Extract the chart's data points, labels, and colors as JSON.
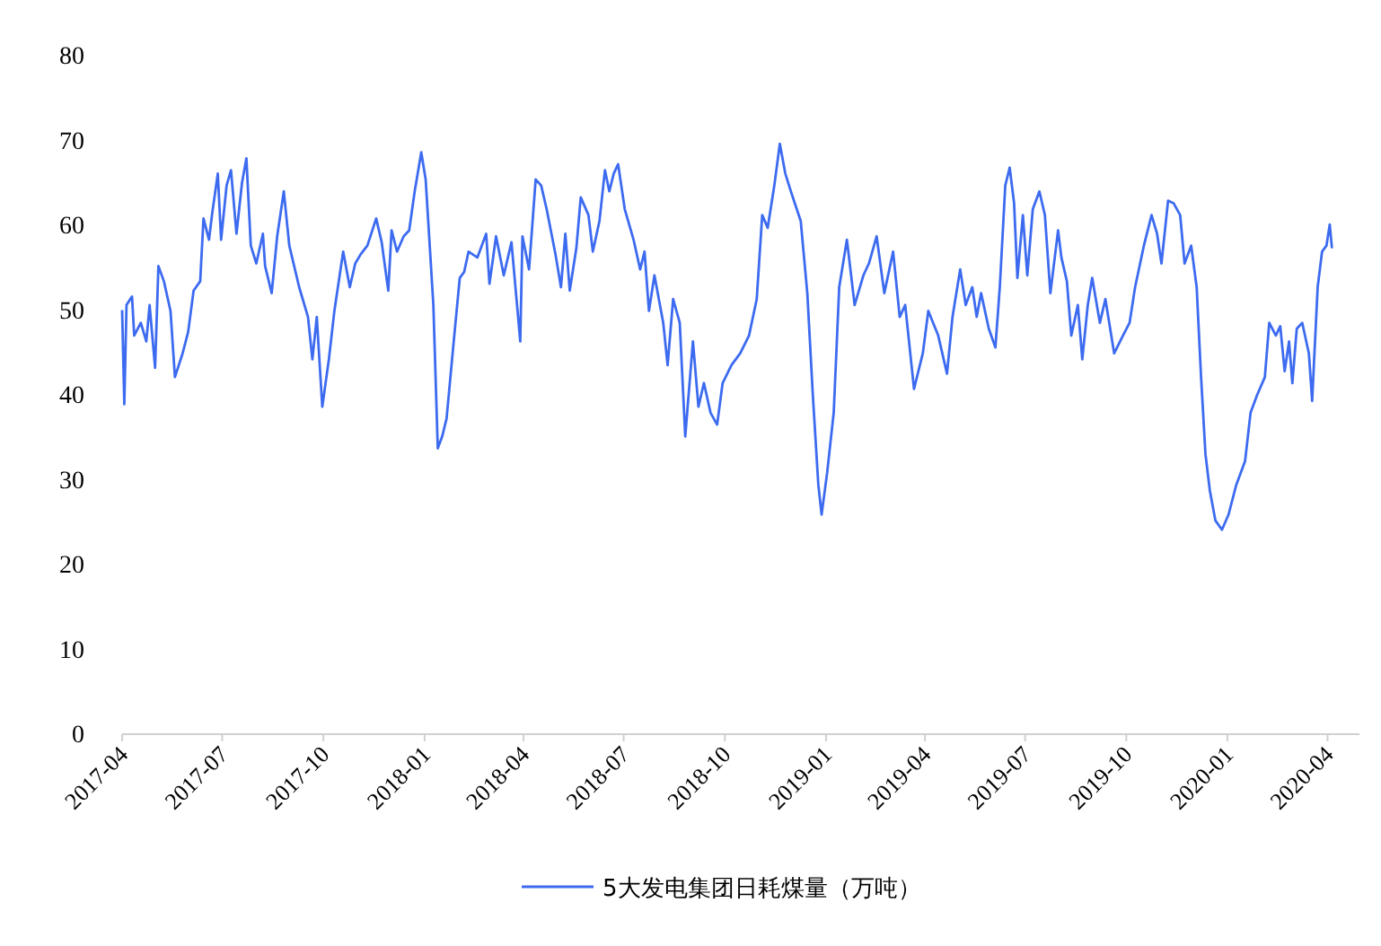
{
  "chart_data": {
    "type": "line",
    "legend": "bottom",
    "xlim": [
      "2017-04-01",
      "2020-04-30"
    ],
    "xticks": [
      "2017-04",
      "2017-07",
      "2017-10",
      "2018-01",
      "2018-04",
      "2018-07",
      "2018-10",
      "2019-01",
      "2019-04",
      "2019-07",
      "2019-10",
      "2020-01",
      "2020-04"
    ],
    "ylim": [
      0,
      80
    ],
    "yticks": [
      0,
      10,
      20,
      30,
      40,
      50,
      60,
      70,
      80
    ],
    "x": [
      "2017-04-01",
      "2017-04-03",
      "2017-04-05",
      "2017-04-10",
      "2017-04-12",
      "2017-04-18",
      "2017-04-23",
      "2017-04-26",
      "2017-05-01",
      "2017-05-04",
      "2017-05-09",
      "2017-05-15",
      "2017-05-19",
      "2017-05-26",
      "2017-05-31",
      "2017-06-05",
      "2017-06-11",
      "2017-06-14",
      "2017-06-19",
      "2017-06-22",
      "2017-06-27",
      "2017-06-30",
      "2017-07-05",
      "2017-07-09",
      "2017-07-14",
      "2017-07-19",
      "2017-07-23",
      "2017-07-27",
      "2017-08-01",
      "2017-08-07",
      "2017-08-09",
      "2017-08-15",
      "2017-08-20",
      "2017-08-26",
      "2017-08-31",
      "2017-09-09",
      "2017-09-17",
      "2017-09-21",
      "2017-09-25",
      "2017-09-30",
      "2017-10-06",
      "2017-10-11",
      "2017-10-19",
      "2017-10-25",
      "2017-10-30",
      "2017-11-04",
      "2017-11-10",
      "2017-11-18",
      "2017-11-23",
      "2017-11-29",
      "2017-12-02",
      "2017-12-07",
      "2017-12-13",
      "2017-12-18",
      "2017-12-23",
      "2017-12-29",
      "2018-01-02",
      "2018-01-09",
      "2018-01-13",
      "2018-01-17",
      "2018-01-21",
      "2018-01-28",
      "2018-02-02",
      "2018-02-06",
      "2018-02-10",
      "2018-02-18",
      "2018-02-26",
      "2018-03-01",
      "2018-03-07",
      "2018-03-14",
      "2018-03-21",
      "2018-03-29",
      "2018-03-31",
      "2018-04-06",
      "2018-04-12",
      "2018-04-17",
      "2018-04-22",
      "2018-04-30",
      "2018-05-05",
      "2018-05-09",
      "2018-05-13",
      "2018-05-19",
      "2018-05-23",
      "2018-05-30",
      "2018-06-03",
      "2018-06-09",
      "2018-06-14",
      "2018-06-18",
      "2018-06-22",
      "2018-06-26",
      "2018-07-02",
      "2018-07-10",
      "2018-07-16",
      "2018-07-20",
      "2018-07-24",
      "2018-07-29",
      "2018-08-06",
      "2018-08-10",
      "2018-08-15",
      "2018-08-21",
      "2018-08-26",
      "2018-09-02",
      "2018-09-07",
      "2018-09-12",
      "2018-09-18",
      "2018-09-24",
      "2018-09-29",
      "2018-10-07",
      "2018-10-15",
      "2018-10-23",
      "2018-10-30",
      "2018-11-04",
      "2018-11-09",
      "2018-11-15",
      "2018-11-20",
      "2018-11-25",
      "2018-11-30",
      "2018-12-09",
      "2018-12-15",
      "2018-12-20",
      "2018-12-25",
      "2018-12-28",
      "2019-01-02",
      "2019-01-08",
      "2019-01-13",
      "2019-01-20",
      "2019-01-27",
      "2019-02-04",
      "2019-02-09",
      "2019-02-16",
      "2019-02-23",
      "2019-03-03",
      "2019-03-09",
      "2019-03-14",
      "2019-03-22",
      "2019-03-30",
      "2019-04-04",
      "2019-04-13",
      "2019-04-21",
      "2019-04-26",
      "2019-05-03",
      "2019-05-08",
      "2019-05-14",
      "2019-05-18",
      "2019-05-22",
      "2019-05-29",
      "2019-06-04",
      "2019-06-08",
      "2019-06-13",
      "2019-06-17",
      "2019-06-21",
      "2019-06-24",
      "2019-06-29",
      "2019-07-03",
      "2019-07-08",
      "2019-07-14",
      "2019-07-19",
      "2019-07-24",
      "2019-07-31",
      "2019-08-03",
      "2019-08-08",
      "2019-08-12",
      "2019-08-18",
      "2019-08-22",
      "2019-08-27",
      "2019-08-31",
      "2019-09-07",
      "2019-09-12",
      "2019-09-20",
      "2019-09-28",
      "2019-10-04",
      "2019-10-09",
      "2019-10-17",
      "2019-10-24",
      "2019-10-29",
      "2019-11-02",
      "2019-11-08",
      "2019-11-13",
      "2019-11-19",
      "2019-11-23",
      "2019-11-29",
      "2019-12-04",
      "2019-12-08",
      "2019-12-12",
      "2019-12-16",
      "2019-12-21",
      "2019-12-27",
      "2020-01-02",
      "2020-01-09",
      "2020-01-17",
      "2020-01-22",
      "2020-01-28",
      "2020-02-04",
      "2020-02-08",
      "2020-02-14",
      "2020-02-18",
      "2020-02-22",
      "2020-02-26",
      "2020-02-29",
      "2020-03-04",
      "2020-03-09",
      "2020-03-15",
      "2020-03-18",
      "2020-03-23",
      "2020-03-27",
      "2020-03-31",
      "2020-04-03",
      "2020-04-05"
    ],
    "series": [
      {
        "name": "5大发电集团日耗煤量（万吨）",
        "color": "#3d6bf0",
        "values": [
          50,
          38.9,
          50.6,
          51.6,
          47.0,
          48.5,
          46.3,
          50.6,
          43.2,
          55.2,
          53.4,
          49.9,
          42.1,
          44.9,
          47.4,
          52.3,
          53.4,
          60.8,
          58.3,
          61.5,
          66.1,
          58.3,
          64.7,
          66.5,
          59.0,
          65.0,
          67.9,
          57.6,
          55.5,
          59.0,
          55.2,
          52.0,
          58.7,
          64.0,
          57.6,
          52.7,
          49.2,
          44.2,
          49.2,
          38.6,
          44.2,
          49.9,
          56.9,
          52.7,
          55.5,
          56.6,
          57.6,
          60.8,
          58.0,
          52.3,
          59.4,
          56.9,
          58.7,
          59.4,
          64.0,
          68.6,
          65.4,
          50.6,
          33.7,
          35.1,
          37.2,
          47.0,
          53.8,
          54.5,
          56.9,
          56.2,
          59.0,
          53.1,
          58.7,
          54.1,
          58.0,
          46.3,
          58.7,
          54.8,
          65.4,
          64.7,
          61.9,
          56.6,
          52.7,
          59.0,
          52.3,
          57.3,
          63.3,
          61.2,
          56.9,
          60.5,
          66.5,
          64.0,
          66.1,
          67.2,
          61.9,
          58.3,
          54.8,
          56.9,
          49.9,
          54.1,
          48.5,
          43.5,
          51.3,
          48.5,
          35.1,
          46.3,
          38.6,
          41.4,
          37.9,
          36.5,
          41.4,
          43.5,
          44.9,
          47.0,
          51.3,
          61.2,
          59.7,
          64.7,
          69.6,
          66.1,
          64.0,
          60.5,
          52.0,
          40.0,
          29.4,
          25.9,
          30.8,
          37.9,
          52.7,
          58.3,
          50.6,
          54.1,
          55.5,
          58.7,
          52.0,
          56.9,
          49.2,
          50.6,
          40.7,
          44.9,
          49.9,
          47.0,
          42.5,
          49.2,
          54.8,
          50.6,
          52.7,
          49.2,
          52.0,
          47.8,
          45.6,
          52.7,
          64.7,
          66.8,
          62.6,
          53.8,
          61.2,
          54.1,
          61.9,
          64.0,
          61.2,
          52.0,
          59.4,
          56.2,
          53.4,
          47.0,
          50.6,
          44.2,
          50.6,
          53.8,
          48.5,
          51.3,
          44.9,
          47.0,
          48.5,
          52.7,
          57.6,
          61.2,
          59.0,
          55.5,
          62.9,
          62.6,
          61.2,
          55.5,
          57.6,
          52.7,
          42.1,
          33.0,
          28.7,
          25.2,
          24.1,
          25.9,
          29.4,
          32.2,
          37.9,
          40.0,
          42.1,
          48.5,
          47.0,
          48.1,
          42.8,
          46.3,
          41.4,
          47.8,
          48.5,
          44.9,
          39.3,
          52.7,
          56.9,
          57.6,
          60.1,
          57.3
        ]
      }
    ]
  }
}
